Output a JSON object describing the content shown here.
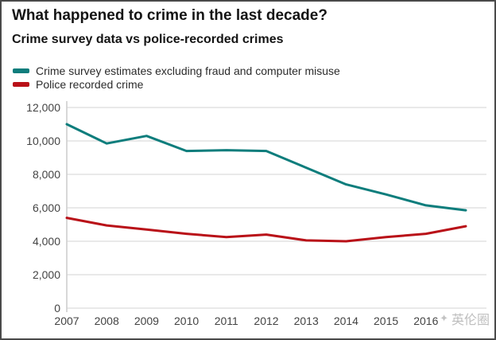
{
  "header": {
    "title": "What happened to crime in the last decade?",
    "subtitle": "Crime survey data vs police-recorded crimes"
  },
  "legend": {
    "items": [
      {
        "label": "Crime survey estimates excluding fraud and computer misuse",
        "color": "#0d7d7c"
      },
      {
        "label": "Police recorded crime",
        "color": "#b91118"
      }
    ]
  },
  "watermark": {
    "icon": "compass-star-icon",
    "icon_glyph": "✦",
    "text": "英伦圈"
  },
  "chart_data": {
    "type": "line",
    "title": "What happened to crime in the last decade?",
    "subtitle": "Crime survey data vs police-recorded crimes",
    "xlabel": "",
    "ylabel": "",
    "x": [
      2007,
      2008,
      2009,
      2010,
      2011,
      2012,
      2013,
      2014,
      2015,
      2016,
      2017
    ],
    "series": [
      {
        "name": "Crime survey estimates excluding fraud and computer misuse",
        "color": "#0d7d7c",
        "values": [
          11000,
          9850,
          10300,
          9400,
          9450,
          9400,
          8400,
          7400,
          6800,
          6150,
          5850
        ]
      },
      {
        "name": "Police recorded crime",
        "color": "#b91118",
        "values": [
          5400,
          4950,
          4700,
          4450,
          4250,
          4400,
          4050,
          4000,
          4250,
          4450,
          4900
        ]
      }
    ],
    "x_ticks": [
      {
        "value": 2007,
        "label": "2007"
      },
      {
        "value": 2008,
        "label": "2008"
      },
      {
        "value": 2009,
        "label": "2009"
      },
      {
        "value": 2010,
        "label": "2010"
      },
      {
        "value": 2011,
        "label": "2011"
      },
      {
        "value": 2012,
        "label": "2012"
      },
      {
        "value": 2013,
        "label": "2013"
      },
      {
        "value": 2014,
        "label": "2014"
      },
      {
        "value": 2015,
        "label": "2015"
      },
      {
        "value": 2016,
        "label": "2016"
      }
    ],
    "y_ticks": [
      {
        "value": 0,
        "label": "0"
      },
      {
        "value": 2000,
        "label": "2,000"
      },
      {
        "value": 4000,
        "label": "4,000"
      },
      {
        "value": 6000,
        "label": "6,000"
      },
      {
        "value": 8000,
        "label": "8,000"
      },
      {
        "value": 10000,
        "label": "10,000"
      },
      {
        "value": 12000,
        "label": "12,000"
      }
    ],
    "ylim": [
      0,
      12000
    ],
    "grid": true,
    "legend_position": "top-left",
    "colors": {
      "grid": "#e2e2e2",
      "axis": "#cfcfcf"
    }
  }
}
